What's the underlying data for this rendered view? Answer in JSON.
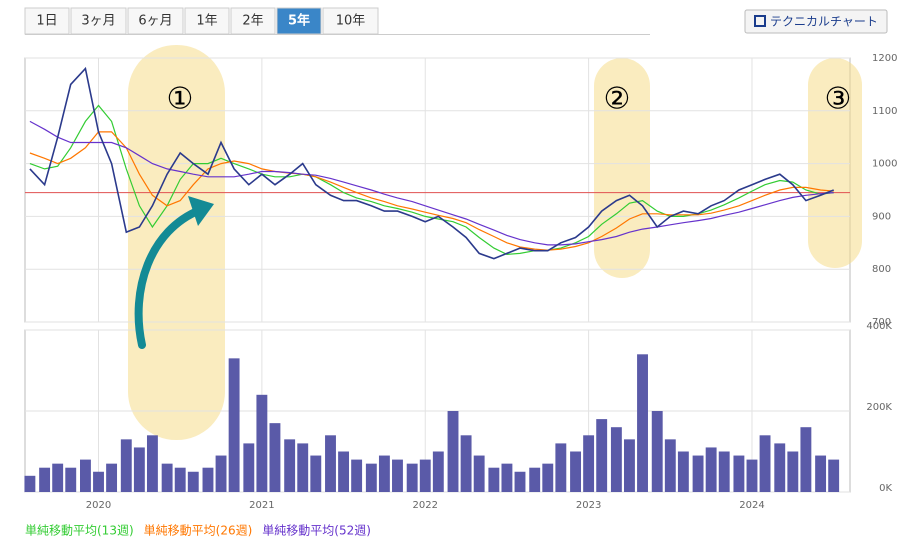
{
  "tabs": [
    "1日",
    "3ヶ月",
    "6ヶ月",
    "1年",
    "2年",
    "5年",
    "10年"
  ],
  "active_tab": 5,
  "button": "テクニカルチャート",
  "annotations": [
    "①",
    "②",
    "③"
  ],
  "chart_data": {
    "type": "line",
    "x": [
      2019.58,
      2019.67,
      2019.75,
      2019.83,
      2019.92,
      2020.0,
      2020.08,
      2020.17,
      2020.25,
      2020.33,
      2020.42,
      2020.5,
      2020.58,
      2020.67,
      2020.75,
      2020.83,
      2020.92,
      2021.0,
      2021.08,
      2021.17,
      2021.25,
      2021.33,
      2021.42,
      2021.5,
      2021.58,
      2021.67,
      2021.75,
      2021.83,
      2021.92,
      2022.0,
      2022.08,
      2022.17,
      2022.25,
      2022.33,
      2022.42,
      2022.5,
      2022.58,
      2022.67,
      2022.75,
      2022.83,
      2022.92,
      2023.0,
      2023.08,
      2023.17,
      2023.25,
      2023.33,
      2023.42,
      2023.5,
      2023.58,
      2023.67,
      2023.75,
      2023.83,
      2023.92,
      2024.0,
      2024.08,
      2024.17,
      2024.25,
      2024.33,
      2024.42,
      2024.5
    ],
    "price": {
      "color": "#2b3a8c",
      "values": [
        990,
        960,
        1050,
        1150,
        1180,
        1060,
        1000,
        870,
        880,
        920,
        980,
        1020,
        1000,
        980,
        1040,
        990,
        960,
        980,
        960,
        980,
        1000,
        960,
        940,
        930,
        930,
        920,
        910,
        910,
        900,
        890,
        900,
        880,
        860,
        830,
        820,
        830,
        840,
        835,
        835,
        850,
        860,
        880,
        910,
        930,
        940,
        920,
        880,
        900,
        910,
        905,
        920,
        930,
        950,
        960,
        970,
        980,
        960,
        930,
        940,
        950
      ]
    },
    "series": [
      {
        "name": "単純移動平均(13週)",
        "color": "#33cc33",
        "values": [
          1000,
          990,
          995,
          1030,
          1080,
          1110,
          1080,
          990,
          920,
          880,
          920,
          970,
          1000,
          1000,
          1010,
          1000,
          990,
          980,
          975,
          975,
          980,
          975,
          960,
          945,
          935,
          928,
          920,
          915,
          908,
          900,
          895,
          890,
          880,
          860,
          840,
          828,
          830,
          835,
          836,
          840,
          850,
          862,
          885,
          905,
          925,
          930,
          910,
          900,
          900,
          905,
          912,
          922,
          935,
          948,
          960,
          968,
          965,
          950,
          942,
          945
        ]
      },
      {
        "name": "単純移動平均(26週)",
        "color": "#ff7700",
        "values": [
          1020,
          1010,
          1000,
          1010,
          1030,
          1060,
          1060,
          1030,
          980,
          940,
          920,
          930,
          960,
          990,
          1000,
          1005,
          1000,
          990,
          985,
          982,
          980,
          975,
          965,
          955,
          945,
          935,
          928,
          920,
          914,
          908,
          902,
          896,
          888,
          875,
          862,
          850,
          842,
          838,
          836,
          838,
          843,
          850,
          862,
          878,
          895,
          905,
          905,
          903,
          903,
          903,
          906,
          912,
          920,
          930,
          940,
          950,
          955,
          955,
          950,
          948
        ]
      },
      {
        "name": "単純移動平均(52週)",
        "color": "#6633cc",
        "values": [
          1080,
          1065,
          1050,
          1040,
          1040,
          1040,
          1040,
          1030,
          1015,
          1000,
          990,
          985,
          980,
          975,
          975,
          975,
          980,
          985,
          985,
          983,
          980,
          978,
          972,
          965,
          958,
          950,
          942,
          935,
          928,
          920,
          912,
          903,
          895,
          885,
          874,
          864,
          856,
          850,
          846,
          846,
          848,
          852,
          856,
          862,
          870,
          876,
          880,
          884,
          888,
          892,
          896,
          902,
          908,
          915,
          922,
          930,
          936,
          940,
          943,
          945
        ]
      }
    ],
    "reference_line": {
      "value": 945,
      "color": "#e05050"
    },
    "volume": {
      "color": "#5a5aa8",
      "values": [
        40000,
        60000,
        70000,
        60000,
        80000,
        50000,
        70000,
        130000,
        110000,
        140000,
        70000,
        60000,
        50000,
        60000,
        90000,
        330000,
        120000,
        240000,
        170000,
        130000,
        120000,
        90000,
        140000,
        100000,
        80000,
        70000,
        90000,
        80000,
        70000,
        80000,
        100000,
        200000,
        140000,
        90000,
        60000,
        70000,
        50000,
        60000,
        70000,
        120000,
        100000,
        140000,
        180000,
        160000,
        130000,
        340000,
        200000,
        130000,
        100000,
        90000,
        110000,
        100000,
        90000,
        80000,
        140000,
        120000,
        100000,
        160000,
        90000,
        80000
      ]
    },
    "xlim": [
      2019.55,
      2024.6
    ],
    "xticks": [
      2020,
      2021,
      2022,
      2023,
      2024
    ],
    "ylim": [
      700,
      1200
    ],
    "yticks": [
      700,
      800,
      900,
      1000,
      1100,
      1200
    ],
    "y2lim": [
      0,
      400000
    ],
    "y2ticks": [
      {
        "value": 0,
        "label": "0K"
      },
      {
        "value": 200000,
        "label": "200K"
      },
      {
        "value": 400000,
        "label": "400K"
      }
    ],
    "grid": true
  }
}
